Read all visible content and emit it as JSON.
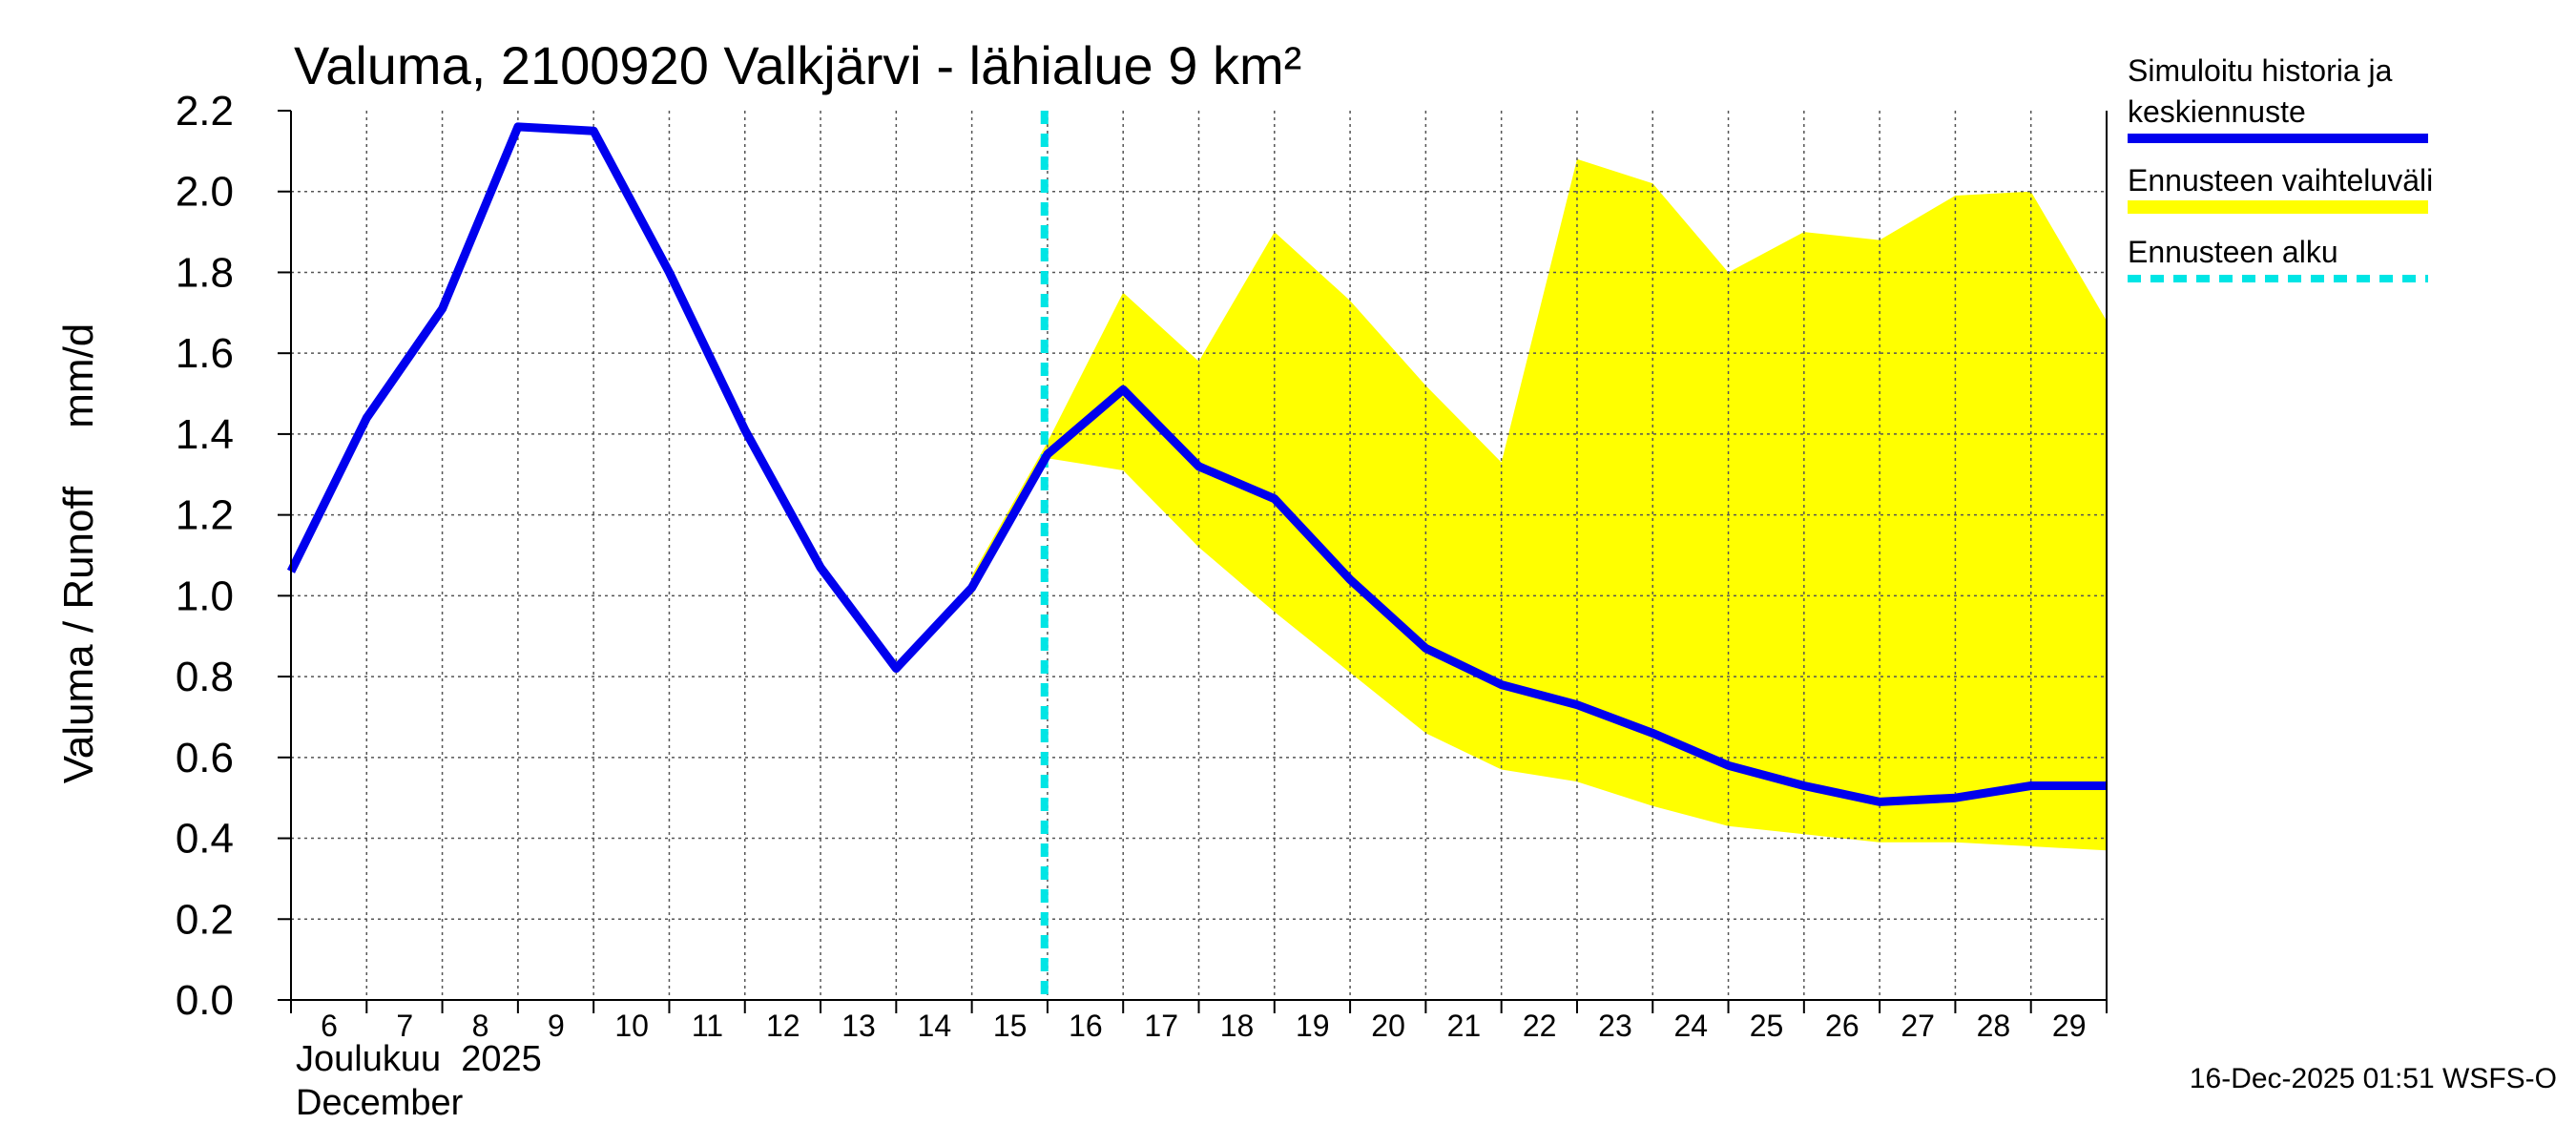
{
  "chart_data": {
    "type": "line",
    "title": "Valuma, 2100920 Valkjärvi - lähialue 9 km²",
    "ylabel": "Valuma / Runoff     mm/d",
    "ylim": [
      0,
      2.2
    ],
    "yticks": [
      "0.0",
      "0.2",
      "0.4",
      "0.6",
      "0.8",
      "1.0",
      "1.2",
      "1.4",
      "1.6",
      "1.8",
      "2.0",
      "2.2"
    ],
    "xlim": [
      6,
      30
    ],
    "xticks": [
      "6",
      "7",
      "8",
      "9",
      "10",
      "11",
      "12",
      "13",
      "14",
      "15",
      "16",
      "17",
      "18",
      "19",
      "20",
      "21",
      "22",
      "23",
      "24",
      "25",
      "26",
      "27",
      "28",
      "29"
    ],
    "month_fi": "Joulukuu  2025",
    "month_en": "December",
    "grid": true,
    "legend_position": "right",
    "forecast_start": 15.96,
    "series": [
      {
        "name": "Simuloitu historia ja keskiennuste",
        "color": "#0000ee",
        "x": [
          6,
          7,
          8,
          9,
          10,
          11,
          12,
          13,
          14,
          15,
          16,
          17,
          18,
          19,
          20,
          21,
          22,
          23,
          24,
          25,
          26,
          27,
          28,
          29,
          30
        ],
        "y": [
          1.06,
          1.44,
          1.71,
          2.16,
          2.15,
          1.8,
          1.41,
          1.07,
          0.82,
          1.02,
          1.35,
          1.51,
          1.32,
          1.24,
          1.04,
          0.87,
          0.78,
          0.73,
          0.66,
          0.58,
          0.53,
          0.49,
          0.5,
          0.53,
          0.53
        ]
      },
      {
        "name": "Ennusteen vaihteluväli",
        "color": "#ffff00",
        "x": [
          15,
          16,
          17,
          18,
          19,
          20,
          21,
          22,
          23,
          24,
          25,
          26,
          27,
          28,
          29,
          30
        ],
        "upper": [
          1.05,
          1.38,
          1.75,
          1.58,
          1.9,
          1.73,
          1.52,
          1.33,
          2.08,
          2.02,
          1.8,
          1.9,
          1.88,
          1.99,
          2.0,
          1.68
        ],
        "lower": [
          1.0,
          1.34,
          1.31,
          1.12,
          0.96,
          0.81,
          0.66,
          0.57,
          0.54,
          0.48,
          0.43,
          0.41,
          0.39,
          0.39,
          0.38,
          0.37
        ]
      },
      {
        "name": "Ennusteen alku",
        "color": "#00e5e5"
      }
    ]
  },
  "legend": {
    "history_line1": "Simuloitu historia ja",
    "history_line2": "keskiennuste",
    "range": "Ennusteen vaihteluväli",
    "forecast_start": "Ennusteen alku"
  },
  "timestamp": "16-Dec-2025 01:51 WSFS-O"
}
